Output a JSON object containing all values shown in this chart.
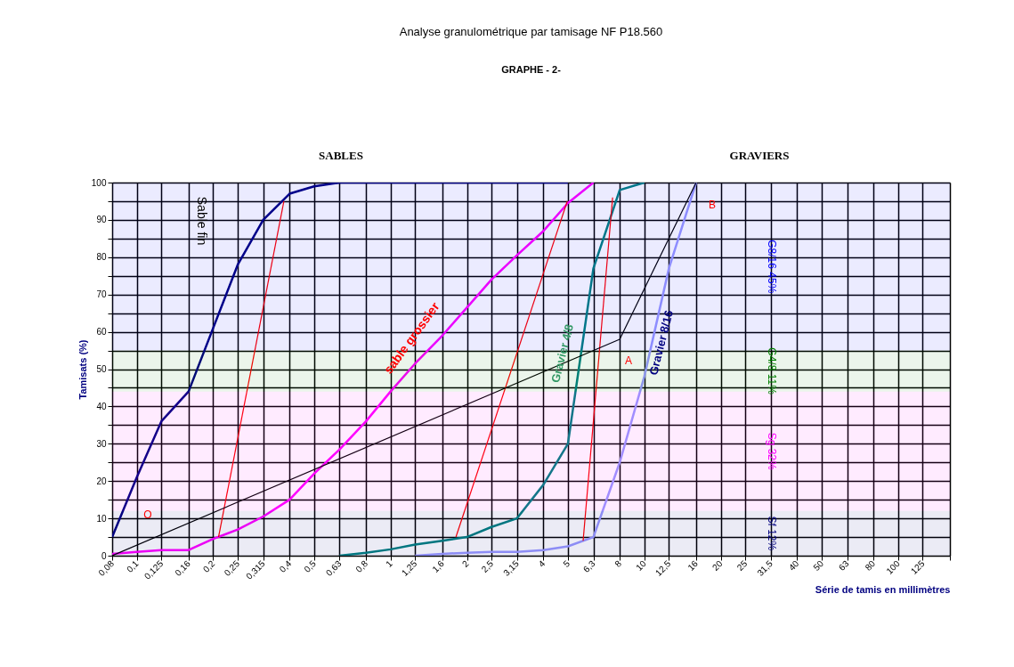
{
  "chart_data": {
    "type": "line",
    "title": "Analyse granulométrique par tamisage NF P18.560",
    "subtitle": "GRAPHE - 2-",
    "xlabel": "Série de tamis en millimètres",
    "ylabel": "Tamisats (%)",
    "log": "x",
    "xlim": [
      0.08,
      160
    ],
    "ylim": [
      0,
      100
    ],
    "xticks": [
      {
        "value": 0.08,
        "label": "0,08"
      },
      {
        "value": 0.1,
        "label": "0,1"
      },
      {
        "value": 0.125,
        "label": "0,125"
      },
      {
        "value": 0.16,
        "label": "0,16"
      },
      {
        "value": 0.2,
        "label": "0,2"
      },
      {
        "value": 0.25,
        "label": "0,25"
      },
      {
        "value": 0.315,
        "label": "0,315"
      },
      {
        "value": 0.4,
        "label": "0,4"
      },
      {
        "value": 0.5,
        "label": "0,5"
      },
      {
        "value": 0.63,
        "label": "0,63"
      },
      {
        "value": 0.8,
        "label": "0,8"
      },
      1,
      {
        "value": 1.25,
        "label": "1,25"
      },
      {
        "value": 1.6,
        "label": "1,6"
      },
      2,
      {
        "value": 2.5,
        "label": "2,5"
      },
      {
        "value": 3.15,
        "label": "3,15"
      },
      4,
      5,
      {
        "value": 6.3,
        "label": "6,3"
      },
      8,
      10,
      {
        "value": 12.5,
        "label": "12,5"
      },
      16,
      20,
      25,
      {
        "value": 31.5,
        "label": "31,5"
      },
      40,
      50,
      63,
      80,
      100,
      125,
      {
        "value": 160,
        "label": null
      }
    ],
    "yticks": [
      0,
      {
        "value": 5,
        "label": null
      },
      10,
      {
        "value": 15,
        "label": null
      },
      20,
      {
        "value": 25,
        "label": null
      },
      30,
      {
        "value": 35,
        "label": null
      },
      40,
      {
        "value": 45,
        "label": null
      },
      50,
      {
        "value": 55,
        "label": null
      },
      60,
      {
        "value": 65,
        "label": null
      },
      70,
      {
        "value": 75,
        "label": null
      },
      80,
      {
        "value": 85,
        "label": null
      },
      90,
      {
        "value": 95,
        "label": null
      },
      100
    ],
    "grid": true,
    "marker": "none",
    "line_style": "solid",
    "series": [
      {
        "color": "#000080",
        "x": [
          0.08,
          0.1,
          0.125,
          0.16,
          0.2,
          0.25,
          0.315,
          0.4,
          0.5,
          0.63,
          0.8,
          1,
          1.25,
          1.6,
          2,
          2.5,
          3.15,
          4,
          5
        ],
        "values": [
          5,
          21,
          36,
          44,
          61,
          78,
          90,
          97,
          99,
          100,
          100,
          100,
          100,
          100,
          100,
          100,
          100,
          100,
          100
        ]
      },
      {
        "color": "#ff00ff",
        "x": [
          0.08,
          0.1,
          0.125,
          0.16,
          0.2,
          0.25,
          0.315,
          0.4,
          0.5,
          0.63,
          0.8,
          1,
          1.25,
          1.6,
          2,
          2.5,
          3.15,
          4,
          5,
          6.3
        ],
        "values": [
          0.5,
          1,
          1.5,
          1.5,
          4.5,
          7,
          10.5,
          15,
          22,
          28.5,
          36,
          44,
          51.5,
          59,
          66.5,
          74,
          80.5,
          87,
          94.5,
          100
        ]
      },
      {
        "color": "#008080",
        "x": [
          0.63,
          0.8,
          1,
          1.25,
          1.6,
          2,
          2.5,
          3.15,
          4,
          5,
          6.3,
          8,
          10
        ],
        "values": [
          0,
          0.8,
          1.7,
          3,
          4,
          5,
          7.7,
          10,
          19,
          30,
          77,
          98,
          100
        ]
      },
      {
        "color": "#9999ff",
        "x": [
          1.25,
          1.6,
          2,
          2.5,
          3.15,
          4,
          5,
          6.3,
          8,
          10,
          12.5,
          16
        ],
        "values": [
          0,
          0.5,
          0.8,
          1,
          1,
          1.5,
          2.5,
          5,
          25,
          48,
          77,
          100
        ]
      },
      {
        "color": "#ff0000",
        "x": [
          0.21,
          0.38
        ],
        "values": [
          5,
          95
        ]
      },
      {
        "color": "#ff0000",
        "x": [
          1.81,
          4.97
        ],
        "values": [
          5,
          95
        ]
      },
      {
        "color": "#ff0000",
        "x": [
          5.74,
          7.5
        ],
        "values": [
          4,
          96
        ]
      },
      {
        "color": "#000000",
        "x": [
          0.08,
          8,
          16
        ],
        "values": [
          0,
          58,
          100
        ]
      }
    ],
    "bands": [
      {
        "axis": "y",
        "from": 55,
        "to": 100,
        "label": "G8/16 45%",
        "color": "#0000ff"
      },
      {
        "axis": "y",
        "from": 44,
        "to": 55,
        "label": "G4/8 11%",
        "color": "#008000"
      },
      {
        "axis": "y",
        "from": 12,
        "to": 44,
        "label": "Sg 32%",
        "color": "#ff00ff"
      },
      {
        "axis": "y",
        "from": 0,
        "to": 12,
        "label": "Sf 12%",
        "color": "#000080"
      }
    ],
    "annotations": [
      "SABLES",
      "GRAVIERS",
      "Sable fin",
      "sable grossier",
      "Gravier 4/8",
      "Gravier 8/16",
      "O",
      "A",
      "B"
    ]
  }
}
